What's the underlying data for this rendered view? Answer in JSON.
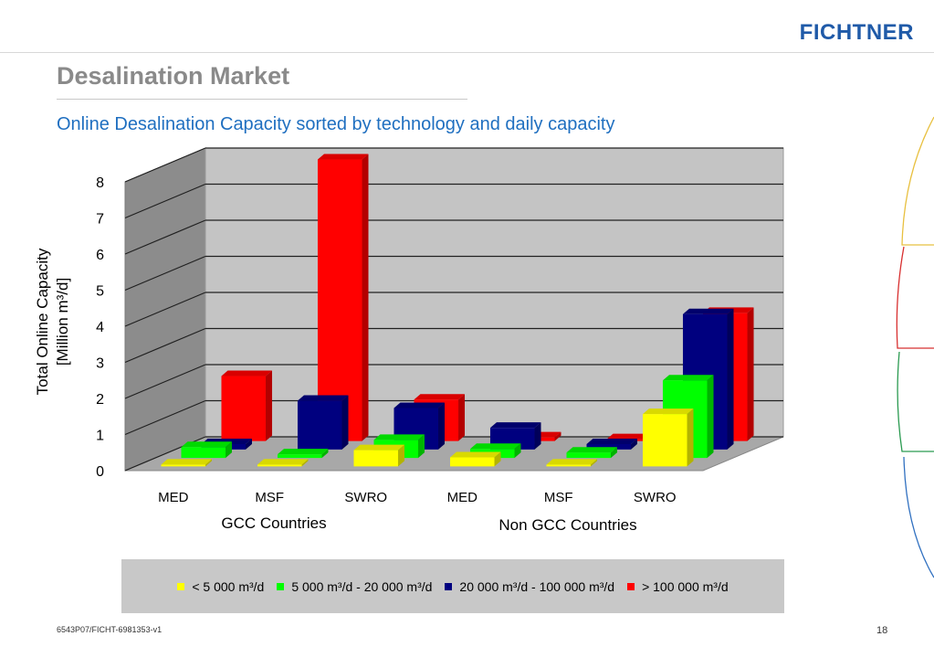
{
  "header": {
    "logo_text": "FICHTNER",
    "title": "Desalination Market",
    "subtitle": "Online Desalination Capacity sorted by technology and daily capacity"
  },
  "footer": {
    "doc_id": "6543P07/FICHT-6981353-v1",
    "page_number": "18"
  },
  "colors": {
    "yellow": "#ffff00",
    "green": "#00ff00",
    "navy": "#00007f",
    "red": "#ff0000",
    "title_gray": "#8a8a8a",
    "subtitle_blue": "#1f6fc0"
  },
  "chart_data": {
    "type": "bar",
    "chart_style": "3d-clustered-column",
    "ylabel_line1": "Total Online Capacity",
    "ylabel_line2": "[Million m³/d]",
    "ylim": [
      0,
      8
    ],
    "yticks": [
      "0",
      "1",
      "2",
      "3",
      "4",
      "5",
      "6",
      "7",
      "8"
    ],
    "grid": true,
    "legend_position": "bottom",
    "categories": [
      "MED",
      "MSF",
      "SWRO",
      "MED",
      "MSF",
      "SWRO"
    ],
    "groups": [
      {
        "label": "GCC Countries",
        "categories": [
          "MED",
          "MSF",
          "SWRO"
        ]
      },
      {
        "label": "Non GCC Countries",
        "categories": [
          "MED",
          "MSF",
          "SWRO"
        ]
      }
    ],
    "series": [
      {
        "name": "<  5 000  m³/d",
        "color": "#ffff00",
        "values": [
          0.05,
          0.05,
          0.45,
          0.25,
          0.05,
          1.45
        ]
      },
      {
        "name": "5 000  m³/d - 20 000  m³/d",
        "color": "#00ff00",
        "values": [
          0.3,
          0.1,
          0.5,
          0.25,
          0.15,
          2.15
        ]
      },
      {
        "name": "20 000  m³/d - 100  000  m³/d",
        "color": "#00007f",
        "values": [
          0.15,
          1.35,
          1.15,
          0.6,
          0.15,
          3.75
        ]
      },
      {
        "name": ">  100  000  m³/d",
        "color": "#ff0000",
        "values": [
          1.8,
          7.8,
          1.15,
          0.1,
          0.05,
          3.55
        ]
      }
    ]
  }
}
